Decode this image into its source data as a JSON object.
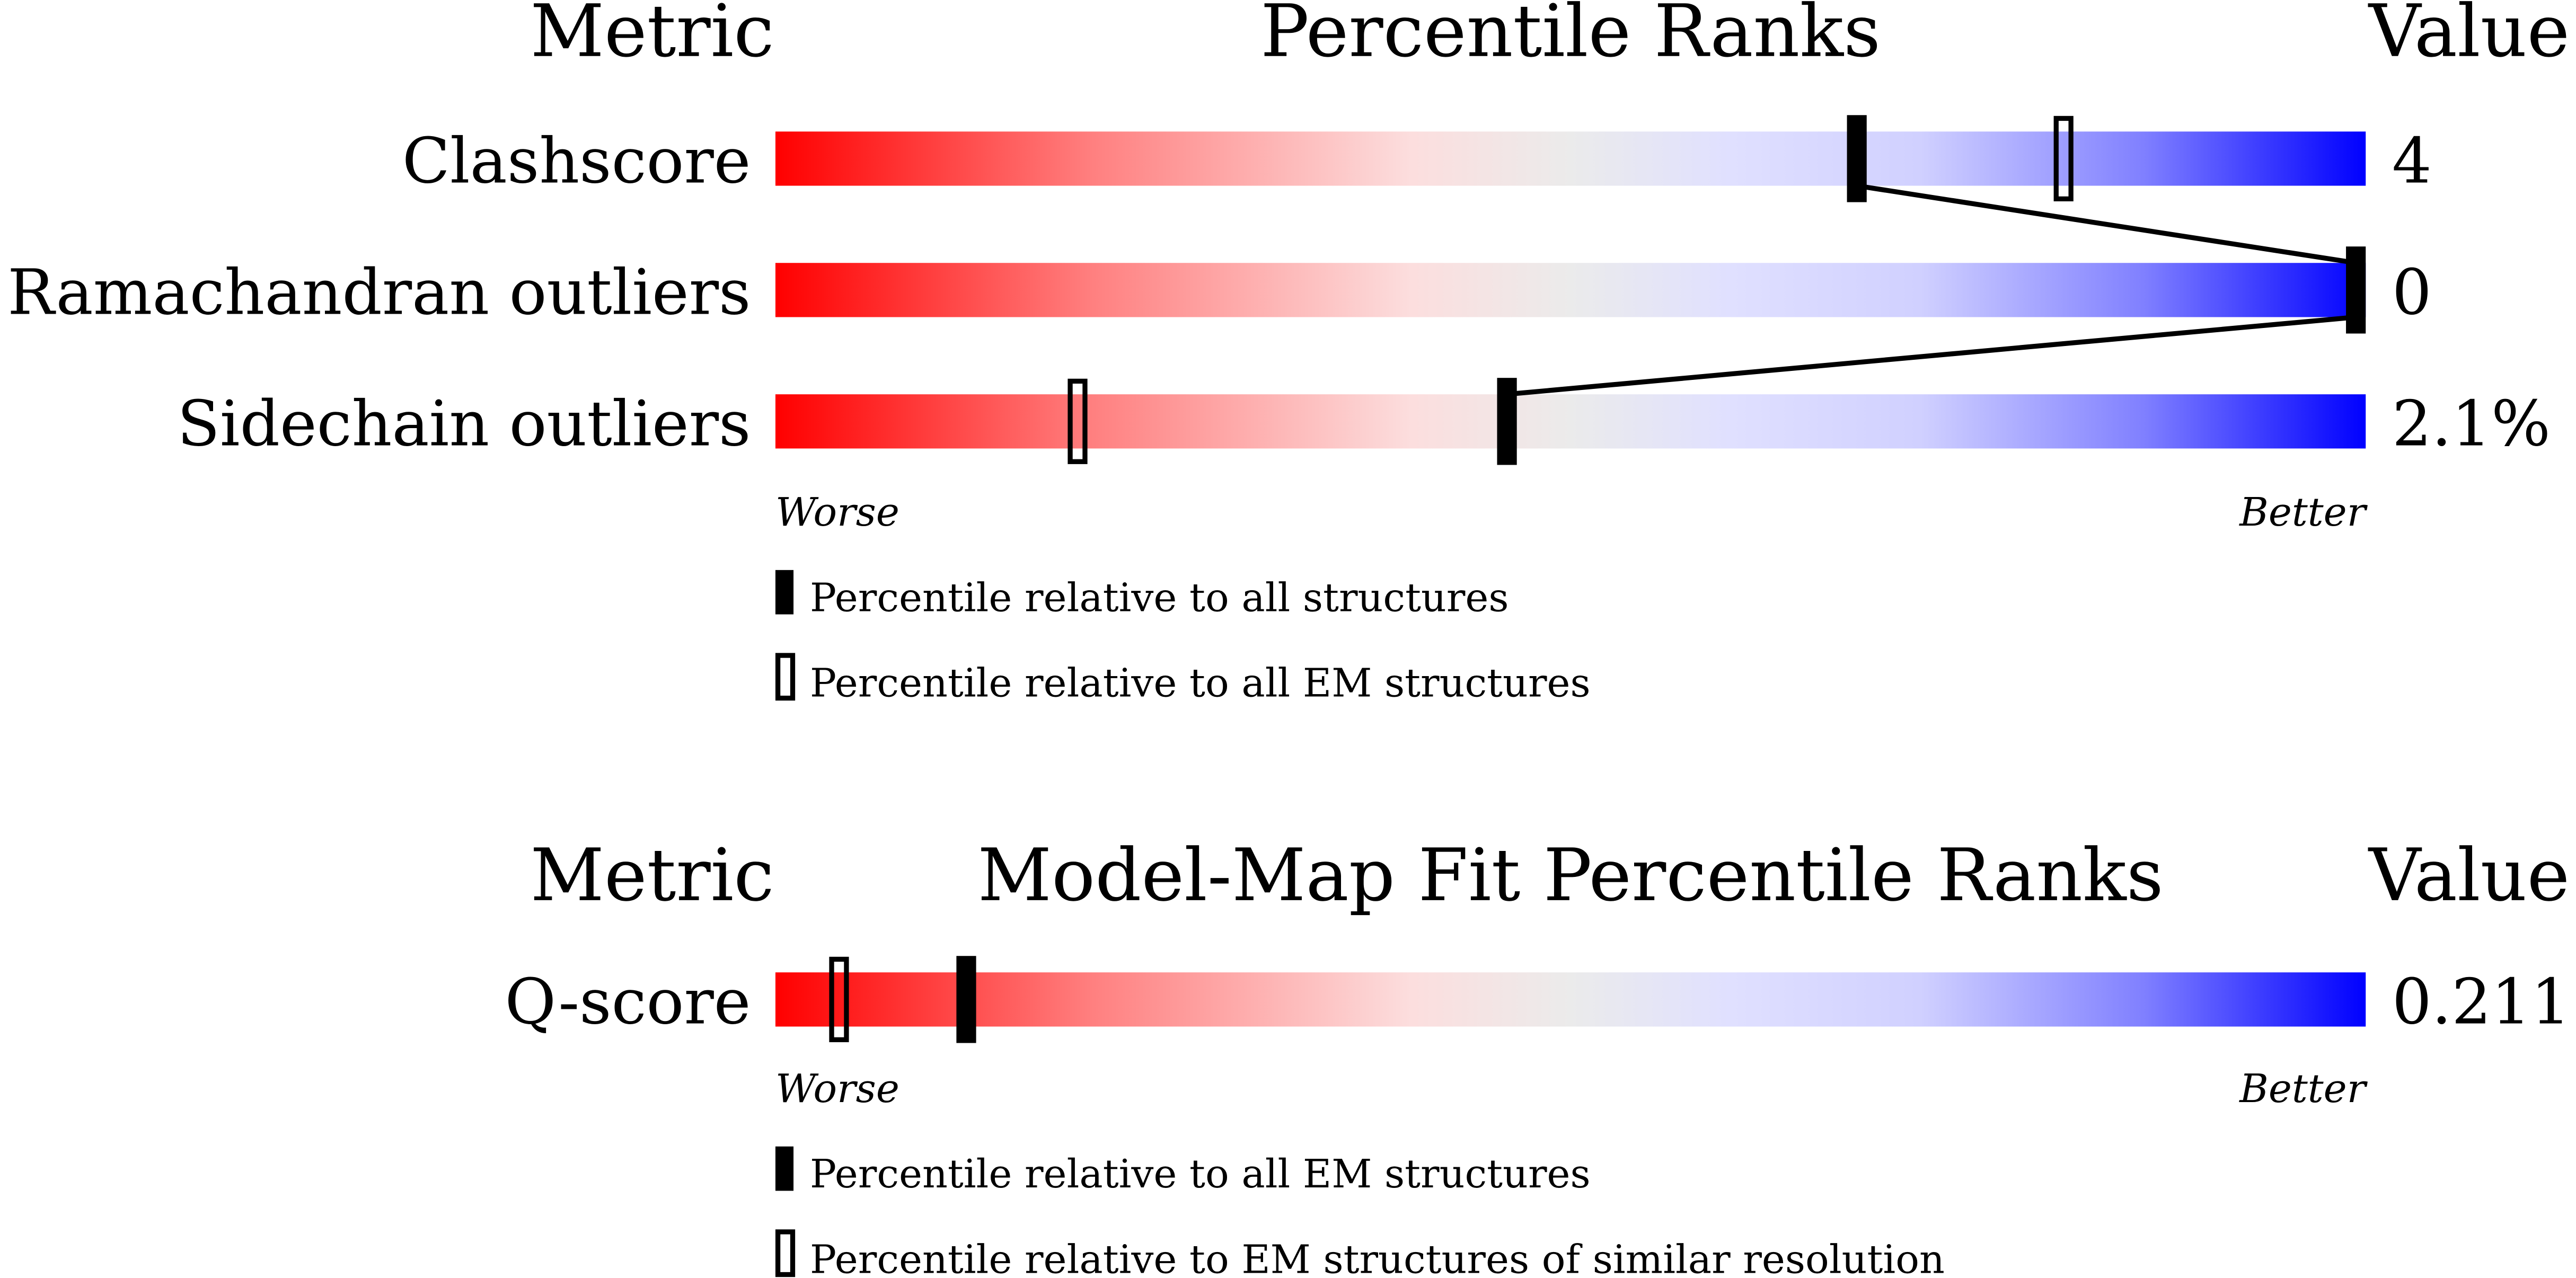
{
  "chart_data": [
    {
      "type": "percentile-bar",
      "headers": {
        "metric": "Metric",
        "title": "Percentile Ranks",
        "value": "Value"
      },
      "rows": [
        {
          "metric": "Clashscore",
          "value": "4",
          "percentile_all": 68,
          "percentile_em": 81
        },
        {
          "metric": "Ramachandran outliers",
          "value": "0",
          "percentile_all": 100,
          "percentile_em": 100
        },
        {
          "metric": "Sidechain outliers",
          "value": "2.1%",
          "percentile_all": 46,
          "percentile_em": 19
        }
      ],
      "axis": {
        "left": "Worse",
        "right": "Better",
        "range": [
          0,
          100
        ]
      },
      "legend": {
        "solid": "Percentile relative to all structures",
        "open": "Percentile relative to all EM structures"
      },
      "show_open_markers": [
        true,
        false,
        true
      ],
      "connect_solid_markers": true
    },
    {
      "type": "percentile-bar",
      "headers": {
        "metric": "Metric",
        "title": "Model-Map Fit Percentile Ranks",
        "value": "Value"
      },
      "rows": [
        {
          "metric": "Q-score",
          "value": "0.211",
          "percentile_all": 12,
          "percentile_em": 4
        }
      ],
      "axis": {
        "left": "Worse",
        "right": "Better",
        "range": [
          0,
          100
        ]
      },
      "legend": {
        "solid": "Percentile relative to all EM structures",
        "open": "Percentile relative to EM structures of similar resolution"
      },
      "show_open_markers": [
        true
      ],
      "connect_solid_markers": false
    }
  ],
  "colors": {
    "worse": "#ff0000",
    "neutral": "#ebebeb",
    "better": "#0000ff"
  }
}
